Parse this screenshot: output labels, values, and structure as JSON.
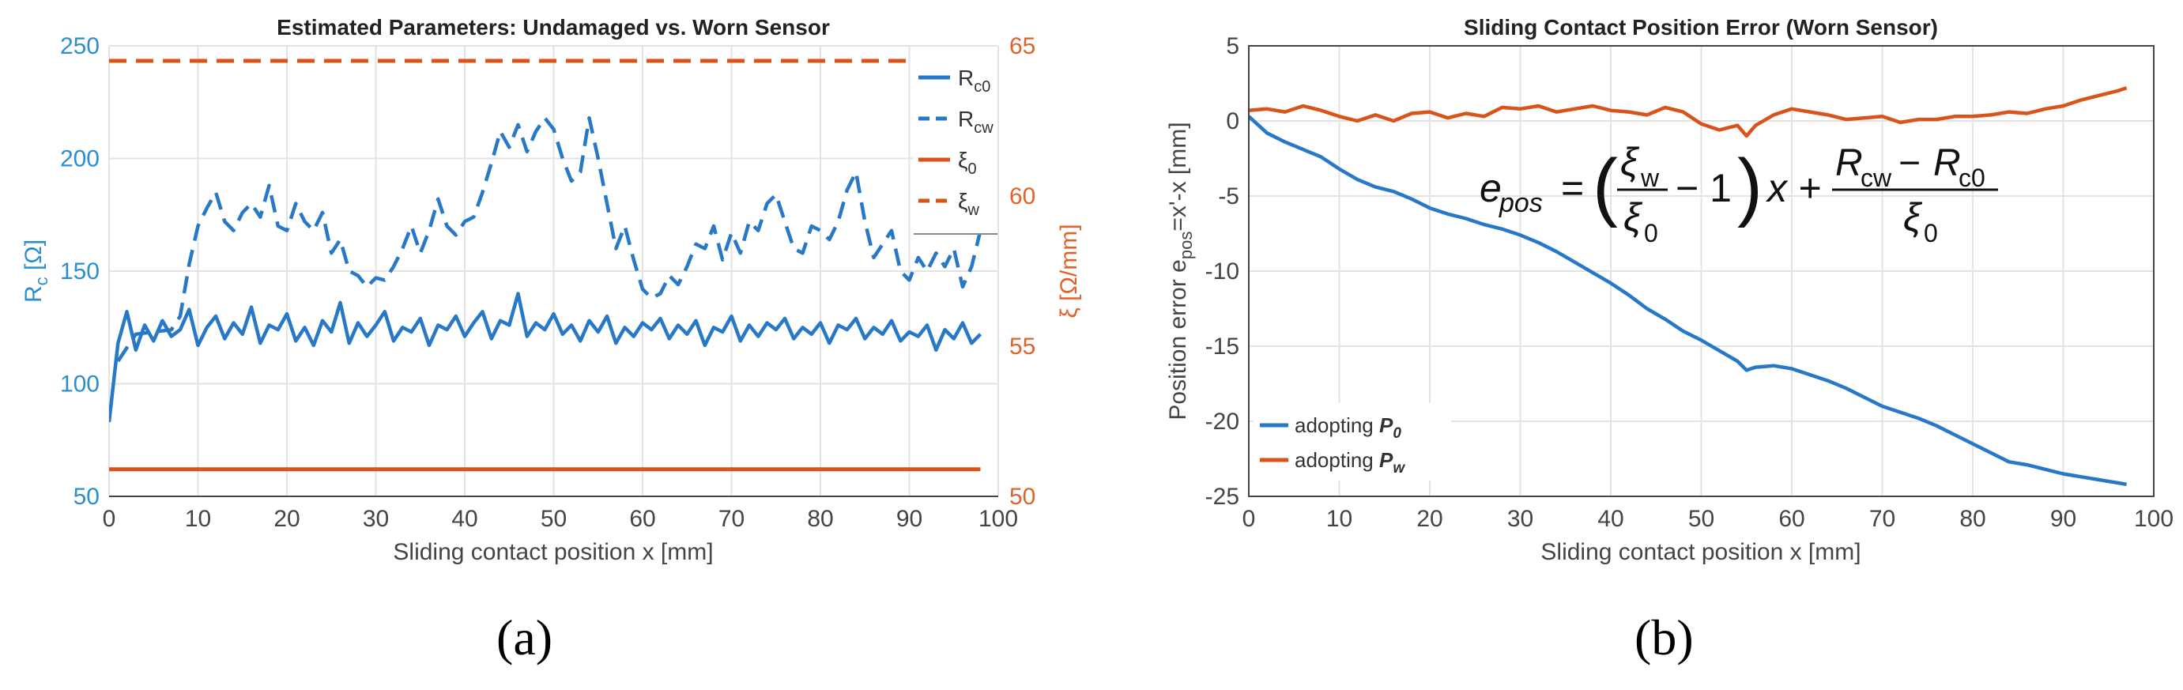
{
  "figure": {
    "panel_a_caption": "(a)",
    "panel_b_caption": "(b)"
  },
  "colors": {
    "blue": "#2878c8",
    "orange": "#d9541a",
    "axis_left_a": "#2a8fd0",
    "axis_right_a": "#e0632a",
    "grid": "#e3e3e3"
  },
  "chart_data": [
    {
      "type": "line",
      "title": "Estimated Parameters: Undamaged vs. Worn Sensor",
      "xlabel": "Sliding contact position x [mm]",
      "ylabel_left_main": "R",
      "ylabel_left_sub": "c",
      "ylabel_left_unit": " [Ω]",
      "ylabel_right": "ξ [Ω/mm]",
      "xlim": [
        0,
        100
      ],
      "ylim_left": [
        50,
        250
      ],
      "ylim_right": [
        50,
        65
      ],
      "xticks": [
        "0",
        "10",
        "20",
        "30",
        "40",
        "50",
        "60",
        "70",
        "80",
        "90",
        "100"
      ],
      "yticks_left": [
        "50",
        "100",
        "150",
        "200",
        "250"
      ],
      "yticks_right": [
        "50",
        "55",
        "60",
        "65"
      ],
      "legend_position": "top-right",
      "series": [
        {
          "name": "R_c0",
          "legend_main": "R",
          "legend_sub": "c0",
          "axis": "left",
          "style": "solid",
          "color": "#2878c8",
          "x": [
            0,
            1,
            2,
            3,
            4,
            5,
            6,
            7,
            8,
            9,
            10,
            11,
            12,
            13,
            14,
            15,
            16,
            17,
            18,
            19,
            20,
            21,
            22,
            23,
            24,
            25,
            26,
            27,
            28,
            29,
            30,
            31,
            32,
            33,
            34,
            35,
            36,
            37,
            38,
            39,
            40,
            41,
            42,
            43,
            44,
            45,
            46,
            47,
            48,
            49,
            50,
            51,
            52,
            53,
            54,
            55,
            56,
            57,
            58,
            59,
            60,
            61,
            62,
            63,
            64,
            65,
            66,
            67,
            68,
            69,
            70,
            71,
            72,
            73,
            74,
            75,
            76,
            77,
            78,
            79,
            80,
            81,
            82,
            83,
            84,
            85,
            86,
            87,
            88,
            89,
            90,
            91,
            92,
            93,
            94,
            95,
            96,
            97,
            98
          ],
          "y": [
            83,
            118,
            132,
            115,
            126,
            119,
            128,
            121,
            124,
            133,
            117,
            125,
            130,
            120,
            127,
            122,
            134,
            118,
            126,
            124,
            131,
            119,
            125,
            117,
            128,
            123,
            136,
            118,
            127,
            121,
            126,
            132,
            119,
            125,
            123,
            129,
            117,
            126,
            124,
            130,
            121,
            127,
            132,
            120,
            128,
            126,
            140,
            121,
            127,
            124,
            131,
            122,
            126,
            119,
            128,
            123,
            130,
            118,
            125,
            121,
            127,
            124,
            129,
            120,
            126,
            122,
            128,
            117,
            125,
            123,
            130,
            119,
            126,
            121,
            127,
            124,
            129,
            120,
            125,
            122,
            127,
            118,
            126,
            124,
            129,
            120,
            125,
            122,
            128,
            119,
            123,
            121,
            126,
            115,
            124,
            120,
            127,
            118,
            122
          ]
        },
        {
          "name": "R_cw",
          "legend_main": "R",
          "legend_sub": "cw",
          "axis": "left",
          "style": "dashed",
          "color": "#2878c8",
          "x": [
            1,
            3,
            5,
            7,
            8,
            9,
            10,
            11,
            12,
            13,
            14,
            15,
            16,
            17,
            18,
            19,
            20,
            21,
            22,
            23,
            24,
            25,
            26,
            27,
            28,
            29,
            30,
            31,
            32,
            33,
            34,
            35,
            36,
            37,
            38,
            39,
            40,
            41,
            42,
            43,
            44,
            45,
            46,
            47,
            48,
            49,
            50,
            51,
            52,
            53,
            54,
            55,
            56,
            57,
            58,
            59,
            60,
            61,
            62,
            63,
            64,
            65,
            66,
            67,
            68,
            69,
            70,
            71,
            72,
            73,
            74,
            75,
            76,
            77,
            78,
            79,
            80,
            81,
            82,
            83,
            84,
            85,
            86,
            87,
            88,
            89,
            90,
            91,
            92,
            93,
            94,
            95,
            96,
            97,
            98
          ],
          "y": [
            110,
            122,
            123,
            124,
            130,
            153,
            170,
            178,
            185,
            172,
            168,
            176,
            180,
            174,
            188,
            170,
            168,
            180,
            172,
            168,
            176,
            158,
            164,
            150,
            148,
            143,
            147,
            146,
            152,
            160,
            170,
            158,
            168,
            182,
            170,
            166,
            172,
            174,
            185,
            198,
            212,
            205,
            215,
            203,
            212,
            218,
            213,
            200,
            190,
            194,
            218,
            200,
            180,
            160,
            170,
            155,
            142,
            138,
            140,
            148,
            144,
            152,
            162,
            160,
            170,
            155,
            167,
            158,
            172,
            168,
            180,
            184,
            172,
            160,
            158,
            170,
            168,
            164,
            172,
            186,
            194,
            172,
            156,
            162,
            168,
            150,
            146,
            156,
            150,
            158,
            152,
            160,
            143,
            152,
            168
          ]
        },
        {
          "name": "ξ_0",
          "legend_main": "ξ",
          "legend_sub": "0",
          "axis": "right",
          "style": "solid",
          "color": "#d9541a",
          "x": [
            0,
            98
          ],
          "y": [
            50.9,
            50.9
          ]
        },
        {
          "name": "ξ_w",
          "legend_main": "ξ",
          "legend_sub": "w",
          "axis": "right",
          "style": "dashed",
          "color": "#d9541a",
          "x": [
            0,
            98
          ],
          "y": [
            64.5,
            64.5
          ]
        }
      ]
    },
    {
      "type": "line",
      "title": "Sliding Contact Position Error (Worn Sensor)",
      "xlabel": "Sliding contact position x [mm]",
      "ylabel_main": "Position error e",
      "ylabel_sub": "pos",
      "ylabel_tail": "=x'-x [mm]",
      "xlim": [
        0,
        100
      ],
      "ylim": [
        -25,
        5
      ],
      "xticks": [
        "0",
        "10",
        "20",
        "30",
        "40",
        "50",
        "60",
        "70",
        "80",
        "90",
        "100"
      ],
      "yticks": [
        "-25",
        "-20",
        "-15",
        "-10",
        "-5",
        "0",
        "5"
      ],
      "legend_position": "bottom-left",
      "equation": {
        "lhs": "e",
        "lhs_sub": "pos",
        "xi": "ξ",
        "sub_w": "w",
        "sub_0": "0",
        "minus_one": "− 1",
        "x_term": "x +",
        "r": "R",
        "sub_cw": "cw",
        "minus": "−",
        "sub_c0": "c0",
        "equals": "="
      },
      "series": [
        {
          "name": "adopting P_0",
          "legend_label": "adopting ",
          "legend_symbol": "P",
          "legend_sub": "0",
          "color": "#2878c8",
          "x": [
            0,
            2,
            4,
            6,
            8,
            10,
            12,
            14,
            16,
            18,
            20,
            22,
            24,
            26,
            28,
            30,
            32,
            34,
            36,
            38,
            40,
            42,
            44,
            46,
            48,
            50,
            52,
            54,
            55,
            56,
            58,
            60,
            62,
            64,
            66,
            68,
            70,
            72,
            74,
            76,
            78,
            80,
            82,
            84,
            86,
            88,
            90,
            92,
            94,
            96,
            97
          ],
          "y": [
            0.3,
            -0.8,
            -1.4,
            -1.9,
            -2.4,
            -3.2,
            -3.9,
            -4.4,
            -4.7,
            -5.2,
            -5.8,
            -6.2,
            -6.5,
            -6.9,
            -7.2,
            -7.6,
            -8.1,
            -8.7,
            -9.4,
            -10.1,
            -10.8,
            -11.6,
            -12.5,
            -13.2,
            -14.0,
            -14.6,
            -15.3,
            -16.0,
            -16.6,
            -16.4,
            -16.3,
            -16.5,
            -16.9,
            -17.3,
            -17.8,
            -18.4,
            -19.0,
            -19.4,
            -19.8,
            -20.3,
            -20.9,
            -21.5,
            -22.1,
            -22.7,
            -22.9,
            -23.2,
            -23.5,
            -23.7,
            -23.9,
            -24.1,
            -24.2
          ]
        },
        {
          "name": "adopting P_w",
          "legend_label": "adopting ",
          "legend_symbol": "P",
          "legend_sub": "w",
          "color": "#d9541a",
          "x": [
            0,
            2,
            4,
            6,
            8,
            10,
            12,
            14,
            16,
            18,
            20,
            22,
            24,
            26,
            28,
            30,
            32,
            34,
            36,
            38,
            40,
            42,
            44,
            46,
            48,
            50,
            52,
            54,
            55,
            56,
            58,
            60,
            62,
            64,
            66,
            68,
            70,
            72,
            74,
            76,
            78,
            80,
            82,
            84,
            86,
            88,
            90,
            92,
            94,
            96,
            97
          ],
          "y": [
            0.7,
            0.8,
            0.6,
            1.0,
            0.7,
            0.3,
            0.0,
            0.4,
            0.0,
            0.5,
            0.6,
            0.2,
            0.5,
            0.3,
            0.9,
            0.8,
            1.0,
            0.6,
            0.8,
            1.0,
            0.7,
            0.6,
            0.4,
            0.9,
            0.6,
            -0.2,
            -0.6,
            -0.3,
            -1.0,
            -0.3,
            0.4,
            0.8,
            0.6,
            0.4,
            0.1,
            0.2,
            0.3,
            -0.1,
            0.1,
            0.1,
            0.3,
            0.3,
            0.4,
            0.6,
            0.5,
            0.8,
            1.0,
            1.4,
            1.7,
            2.0,
            2.2
          ]
        }
      ]
    }
  ]
}
